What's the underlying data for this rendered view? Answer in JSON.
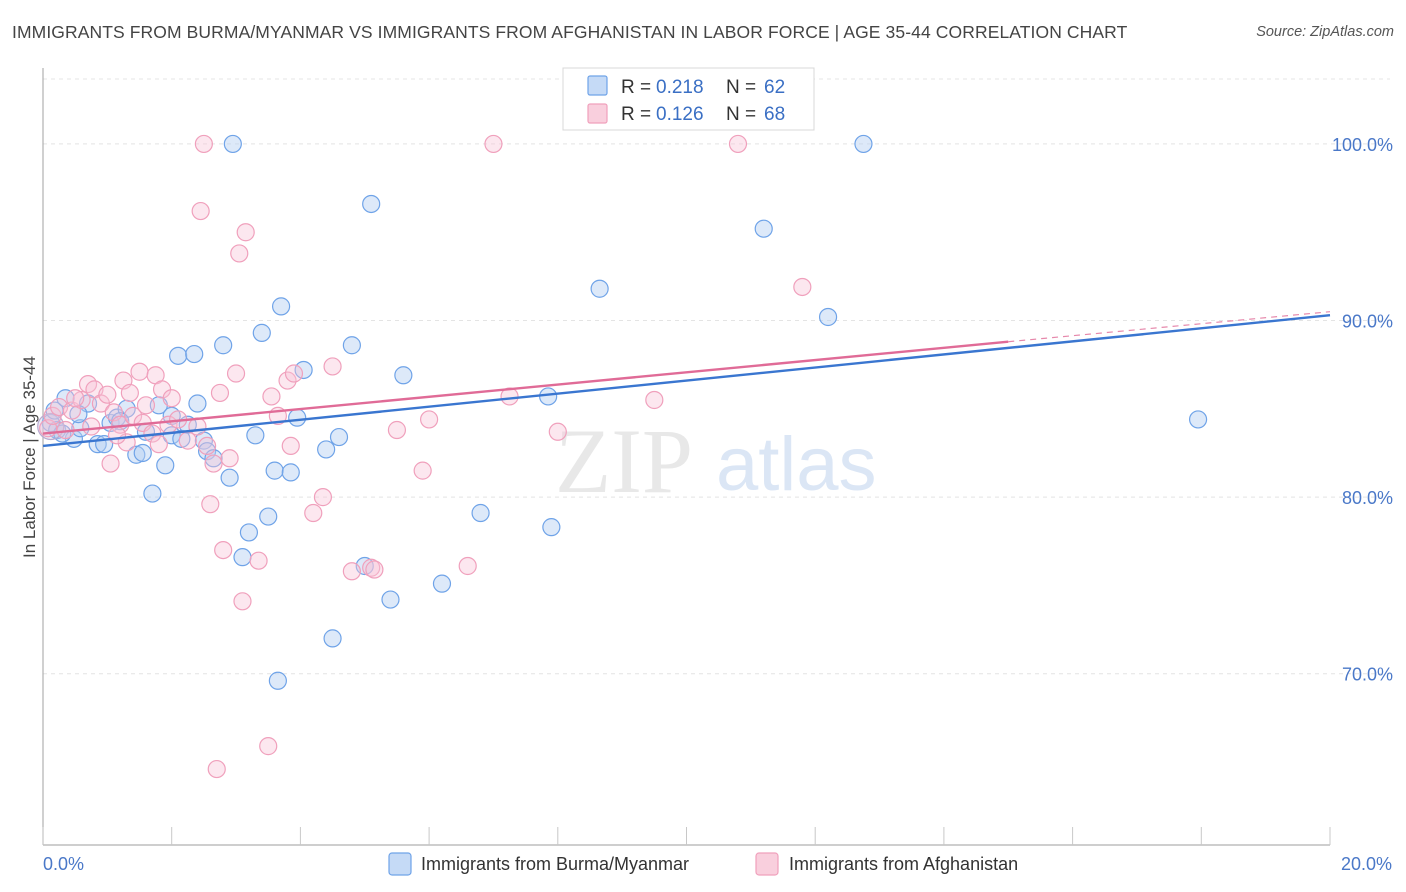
{
  "title": "IMMIGRANTS FROM BURMA/MYANMAR VS IMMIGRANTS FROM AFGHANISTAN IN LABOR FORCE | AGE 35-44 CORRELATION CHART",
  "source": "Source: ZipAtlas.com",
  "watermark": {
    "zip": "ZIP",
    "atlas": "atlas"
  },
  "legend": {
    "rows": [
      {
        "r_label": "R = ",
        "r_value": "0.218",
        "n_label": "N = ",
        "n_value": "62"
      },
      {
        "r_label": "R = ",
        "r_value": "0.126",
        "n_label": "N = ",
        "n_value": "68"
      }
    ]
  },
  "bottom_legend": {
    "items": [
      {
        "label": "Immigrants from Burma/Myanmar"
      },
      {
        "label": "Immigrants from Afghanistan"
      }
    ]
  },
  "chart_data": {
    "type": "scatter",
    "title": "IMMIGRANTS FROM BURMA/MYANMAR VS IMMIGRANTS FROM AFGHANISTAN IN LABOR FORCE | AGE 35-44 CORRELATION CHART",
    "xlabel": "",
    "ylabel": "In Labor Force | Age 35-44",
    "xlim": [
      0,
      20
    ],
    "ylim": [
      60.3,
      104.3
    ],
    "x_tick_labels": [
      "0.0%",
      "20.0%"
    ],
    "y_ticks": [
      70,
      80,
      90,
      100
    ],
    "y_tick_labels": [
      "70.0%",
      "80.0%",
      "90.0%",
      "100.0%"
    ],
    "grid": true,
    "series": [
      {
        "name": "Immigrants from Burma/Myanmar",
        "color": "#6fa3e8",
        "line_color": "#3a76d0",
        "R": 0.218,
        "N": 62,
        "trend": {
          "x": [
            0,
            20
          ],
          "y": [
            82.9,
            90.3
          ]
        },
        "points": [
          [
            0.12,
            84.2
          ],
          [
            0.18,
            84.9
          ],
          [
            0.22,
            83.8
          ],
          [
            0.35,
            85.6
          ],
          [
            0.48,
            83.3
          ],
          [
            0.58,
            83.9
          ],
          [
            0.7,
            85.3
          ],
          [
            0.85,
            83.0
          ],
          [
            0.95,
            83.0
          ],
          [
            1.05,
            84.2
          ],
          [
            1.15,
            84.5
          ],
          [
            1.3,
            85.0
          ],
          [
            1.45,
            82.4
          ],
          [
            1.55,
            82.5
          ],
          [
            1.7,
            80.2
          ],
          [
            1.8,
            85.2
          ],
          [
            1.9,
            81.8
          ],
          [
            2.0,
            83.5
          ],
          [
            2.1,
            88.0
          ],
          [
            2.15,
            83.3
          ],
          [
            2.25,
            84.1
          ],
          [
            2.35,
            88.1
          ],
          [
            2.4,
            85.3
          ],
          [
            2.5,
            83.2
          ],
          [
            2.55,
            82.6
          ],
          [
            2.65,
            82.2
          ],
          [
            2.8,
            88.6
          ],
          [
            2.9,
            81.1
          ],
          [
            2.95,
            100.0
          ],
          [
            3.1,
            76.6
          ],
          [
            3.2,
            78.0
          ],
          [
            3.3,
            83.5
          ],
          [
            3.4,
            89.3
          ],
          [
            3.5,
            78.9
          ],
          [
            3.6,
            81.5
          ],
          [
            3.7,
            90.8
          ],
          [
            3.85,
            81.4
          ],
          [
            3.95,
            84.5
          ],
          [
            4.05,
            87.2
          ],
          [
            4.4,
            82.7
          ],
          [
            4.5,
            72.0
          ],
          [
            4.6,
            83.4
          ],
          [
            4.8,
            88.6
          ],
          [
            5.0,
            76.1
          ],
          [
            5.1,
            96.6
          ],
          [
            5.4,
            74.2
          ],
          [
            5.6,
            86.9
          ],
          [
            6.2,
            75.1
          ],
          [
            6.8,
            79.1
          ],
          [
            7.85,
            85.7
          ],
          [
            7.9,
            78.3
          ],
          [
            8.65,
            91.8
          ],
          [
            11.2,
            95.2
          ],
          [
            12.2,
            90.2
          ],
          [
            12.75,
            100.0
          ],
          [
            17.95,
            84.4
          ],
          [
            3.65,
            69.6
          ],
          [
            0.55,
            84.7
          ],
          [
            1.2,
            84.3
          ],
          [
            0.3,
            83.6
          ],
          [
            2.0,
            84.6
          ],
          [
            1.6,
            83.7
          ]
        ]
      },
      {
        "name": "Immigrants from Afghanistan",
        "color": "#f0a0bc",
        "line_color": "#e06b97",
        "R": 0.126,
        "N": 68,
        "trend": {
          "x": [
            0,
            15.0
          ],
          "y": [
            83.6,
            88.8
          ]
        },
        "trend_dashed": {
          "x": [
            15.0,
            20
          ],
          "y": [
            88.8,
            90.5
          ]
        },
        "points": [
          [
            0.08,
            83.9
          ],
          [
            0.15,
            84.6
          ],
          [
            0.25,
            85.1
          ],
          [
            0.35,
            83.8
          ],
          [
            0.45,
            84.9
          ],
          [
            0.6,
            85.5
          ],
          [
            0.7,
            86.4
          ],
          [
            0.75,
            84.0
          ],
          [
            0.8,
            86.1
          ],
          [
            0.9,
            85.3
          ],
          [
            1.0,
            85.8
          ],
          [
            1.05,
            81.9
          ],
          [
            1.1,
            84.8
          ],
          [
            1.2,
            84.1
          ],
          [
            1.25,
            86.6
          ],
          [
            1.3,
            83.1
          ],
          [
            1.35,
            85.9
          ],
          [
            1.4,
            84.6
          ],
          [
            1.5,
            87.1
          ],
          [
            1.55,
            84.2
          ],
          [
            1.6,
            85.2
          ],
          [
            1.7,
            83.6
          ],
          [
            1.75,
            86.9
          ],
          [
            1.8,
            83.0
          ],
          [
            1.85,
            86.1
          ],
          [
            1.95,
            84.1
          ],
          [
            2.0,
            85.6
          ],
          [
            2.1,
            84.4
          ],
          [
            2.25,
            83.2
          ],
          [
            2.4,
            84.0
          ],
          [
            2.45,
            96.2
          ],
          [
            2.5,
            100.0
          ],
          [
            2.55,
            82.9
          ],
          [
            2.6,
            79.6
          ],
          [
            2.65,
            81.9
          ],
          [
            2.75,
            85.9
          ],
          [
            2.8,
            77.0
          ],
          [
            2.9,
            82.2
          ],
          [
            3.0,
            87.0
          ],
          [
            3.05,
            93.8
          ],
          [
            3.1,
            74.1
          ],
          [
            3.15,
            95.0
          ],
          [
            3.35,
            76.4
          ],
          [
            3.5,
            65.9
          ],
          [
            3.55,
            85.7
          ],
          [
            3.65,
            84.6
          ],
          [
            3.8,
            86.6
          ],
          [
            3.85,
            82.9
          ],
          [
            3.9,
            87.0
          ],
          [
            4.2,
            79.1
          ],
          [
            4.35,
            80.0
          ],
          [
            4.5,
            87.4
          ],
          [
            4.8,
            75.8
          ],
          [
            5.1,
            76.0
          ],
          [
            5.15,
            75.9
          ],
          [
            5.5,
            83.8
          ],
          [
            5.9,
            81.5
          ],
          [
            6.0,
            84.4
          ],
          [
            6.6,
            76.1
          ],
          [
            7.0,
            100.0
          ],
          [
            7.25,
            85.7
          ],
          [
            8.0,
            83.7
          ],
          [
            9.5,
            85.5
          ],
          [
            10.8,
            100.0
          ],
          [
            11.8,
            91.9
          ],
          [
            2.7,
            64.6
          ],
          [
            0.5,
            85.6
          ],
          [
            1.15,
            83.5
          ]
        ]
      }
    ]
  }
}
